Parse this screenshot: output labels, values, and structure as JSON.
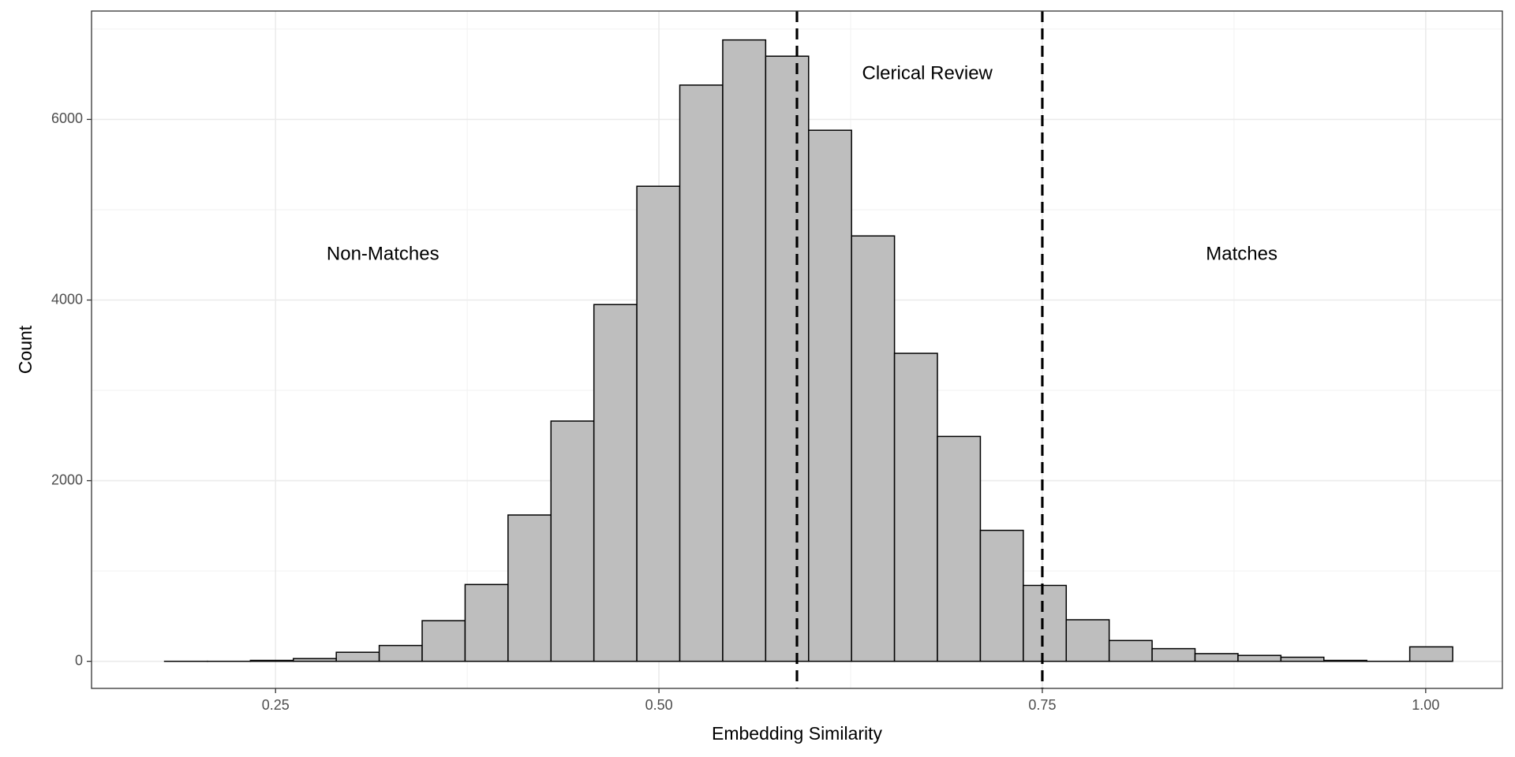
{
  "chart_data": {
    "type": "bar",
    "subtype": "histogram",
    "xlabel": "Embedding Similarity",
    "ylabel": "Count",
    "xlim": [
      0.13,
      1.05
    ],
    "ylim": [
      -300,
      7200
    ],
    "x_ticks": [
      0.25,
      0.5,
      0.75,
      1.0
    ],
    "x_tick_labels": [
      "0.25",
      "0.50",
      "0.75",
      "1.00"
    ],
    "y_ticks": [
      0,
      2000,
      4000,
      6000
    ],
    "y_tick_labels": [
      "0",
      "2000",
      "4000",
      "6000"
    ],
    "grid": true,
    "legend": "none",
    "bar_fill": "#bebebe",
    "bar_outline": "#000000",
    "bins": [
      {
        "start": 0.1776,
        "end": 0.2056,
        "count": 0
      },
      {
        "start": 0.2056,
        "end": 0.2336,
        "count": 0
      },
      {
        "start": 0.2336,
        "end": 0.2616,
        "count": 10
      },
      {
        "start": 0.2616,
        "end": 0.2896,
        "count": 30
      },
      {
        "start": 0.2896,
        "end": 0.3176,
        "count": 100
      },
      {
        "start": 0.3176,
        "end": 0.3456,
        "count": 175
      },
      {
        "start": 0.3456,
        "end": 0.3736,
        "count": 450
      },
      {
        "start": 0.3736,
        "end": 0.4016,
        "count": 850
      },
      {
        "start": 0.4016,
        "end": 0.4296,
        "count": 1620
      },
      {
        "start": 0.4296,
        "end": 0.4576,
        "count": 2660
      },
      {
        "start": 0.4576,
        "end": 0.4856,
        "count": 3950
      },
      {
        "start": 0.4856,
        "end": 0.5136,
        "count": 5260
      },
      {
        "start": 0.5136,
        "end": 0.5416,
        "count": 6380
      },
      {
        "start": 0.5416,
        "end": 0.5696,
        "count": 6880
      },
      {
        "start": 0.5696,
        "end": 0.5976,
        "count": 6700
      },
      {
        "start": 0.5976,
        "end": 0.6256,
        "count": 5880
      },
      {
        "start": 0.6256,
        "end": 0.6536,
        "count": 4710
      },
      {
        "start": 0.6536,
        "end": 0.6816,
        "count": 3410
      },
      {
        "start": 0.6816,
        "end": 0.7096,
        "count": 2490
      },
      {
        "start": 0.7096,
        "end": 0.7376,
        "count": 1450
      },
      {
        "start": 0.7376,
        "end": 0.7656,
        "count": 840
      },
      {
        "start": 0.7656,
        "end": 0.7936,
        "count": 460
      },
      {
        "start": 0.7936,
        "end": 0.8216,
        "count": 230
      },
      {
        "start": 0.8216,
        "end": 0.8496,
        "count": 140
      },
      {
        "start": 0.8496,
        "end": 0.8776,
        "count": 85
      },
      {
        "start": 0.8776,
        "end": 0.9056,
        "count": 65
      },
      {
        "start": 0.9056,
        "end": 0.9336,
        "count": 45
      },
      {
        "start": 0.9336,
        "end": 0.9616,
        "count": 10
      },
      {
        "start": 0.9616,
        "end": 0.9896,
        "count": 0
      },
      {
        "start": 0.9896,
        "end": 1.0176,
        "count": 160
      }
    ],
    "reference_lines": [
      {
        "x": 0.59,
        "style": "dashed"
      },
      {
        "x": 0.75,
        "style": "dashed"
      }
    ],
    "annotations": [
      {
        "text": "Non-Matches",
        "x": 0.32,
        "y": 4500
      },
      {
        "text": "Clerical Review",
        "x": 0.675,
        "y": 6500
      },
      {
        "text": "Matches",
        "x": 0.88,
        "y": 4500
      }
    ]
  }
}
